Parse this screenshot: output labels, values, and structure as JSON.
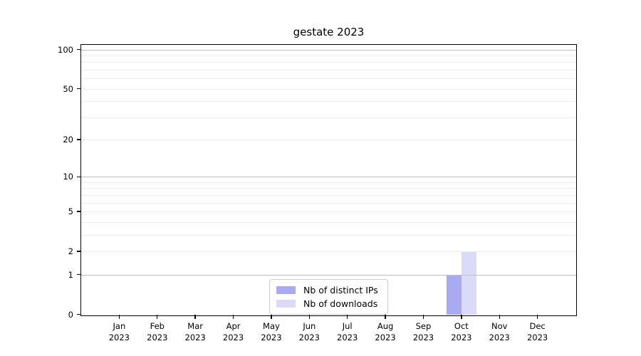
{
  "chart_data": {
    "type": "bar",
    "title": "gestate 2023",
    "categories": [
      "Jan",
      "Feb",
      "Mar",
      "Apr",
      "May",
      "Jun",
      "Jul",
      "Aug",
      "Sep",
      "Oct",
      "Nov",
      "Dec"
    ],
    "x_year": "2023",
    "series": [
      {
        "name": "Nb of distinct IPs",
        "color": "#aaaaf2",
        "values": [
          0,
          0,
          0,
          0,
          0,
          0,
          0,
          0,
          0,
          1,
          0,
          0
        ]
      },
      {
        "name": "Nb of downloads",
        "color": "#dbdbf8",
        "values": [
          0,
          0,
          0,
          0,
          0,
          0,
          0,
          0,
          0,
          2,
          0,
          0
        ]
      }
    ],
    "xlabel": "",
    "ylabel": "",
    "yscale": "log1p",
    "ylim": [
      0,
      110
    ],
    "yticks": [
      0,
      1,
      2,
      5,
      10,
      20,
      50,
      100
    ],
    "major_gridlines": [
      1,
      10,
      100
    ],
    "minor_gridlines": [
      2,
      3,
      4,
      5,
      6,
      7,
      8,
      9,
      20,
      30,
      40,
      50,
      60,
      70,
      80,
      90
    ],
    "grid": "on",
    "legend_position": "lower center",
    "axis_color": "#000000",
    "gridline_major_color": "#bebebe",
    "gridline_minor_color": "#ececec"
  }
}
